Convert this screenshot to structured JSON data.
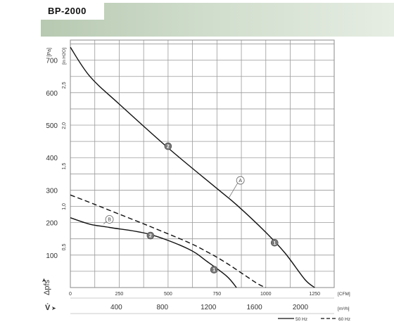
{
  "title": "BP-2000",
  "chart_data": {
    "type": "line",
    "y_axis": {
      "label": "Δpfs",
      "unit_pa": "[Pa]",
      "unit_inh2o": "[in H2O]",
      "ticks_pa": [
        100,
        200,
        300,
        400,
        500,
        600,
        700
      ],
      "ticks_inh2o": [
        "0,5",
        "1,0",
        "1,5",
        "2,0",
        "2,5"
      ],
      "ylim_pa": [
        0,
        762
      ]
    },
    "x_axis": {
      "label": "V̇",
      "unit_cfm": "[CFM]",
      "unit_m3h": "[m³/h]",
      "ticks_cfm": [
        0,
        250,
        500,
        750,
        1000,
        1250
      ],
      "ticks_m3h": [
        400,
        800,
        1200,
        1600,
        2000
      ],
      "xlim_cfm": [
        0,
        1350
      ]
    },
    "series": [
      {
        "marker": "A",
        "style": "solid",
        "x": [
          0,
          100,
          250,
          500,
          750,
          850,
          1000,
          1100,
          1200,
          1250
        ],
        "y": [
          740,
          650,
          565,
          430,
          305,
          255,
          170,
          105,
          25,
          0
        ]
      },
      {
        "marker": "B",
        "style": "dashed",
        "x": [
          0,
          100,
          200,
          400,
          600,
          700,
          800,
          950,
          1000
        ],
        "y": [
          285,
          262,
          238,
          190,
          140,
          110,
          75,
          15,
          0
        ]
      },
      {
        "marker": "",
        "style": "solid",
        "x": [
          0,
          100,
          200,
          400,
          600,
          700,
          800,
          850
        ],
        "y": [
          215,
          195,
          185,
          165,
          120,
          80,
          35,
          0
        ]
      }
    ],
    "annotations": [
      {
        "label": "A",
        "x": 870,
        "y": 330,
        "kind": "letter"
      },
      {
        "label": "B",
        "x": 200,
        "y": 210,
        "kind": "letter"
      },
      {
        "label": "2",
        "x": 500,
        "y": 435,
        "kind": "number"
      },
      {
        "label": "1",
        "x": 1045,
        "y": 138,
        "kind": "number"
      },
      {
        "label": "2",
        "x": 410,
        "y": 160,
        "kind": "number"
      },
      {
        "label": "1",
        "x": 735,
        "y": 55,
        "kind": "number"
      }
    ],
    "legend": [
      {
        "label": "50 Hz",
        "style": "solid"
      },
      {
        "label": "60 Hz",
        "style": "dashed"
      }
    ],
    "grid": true
  }
}
